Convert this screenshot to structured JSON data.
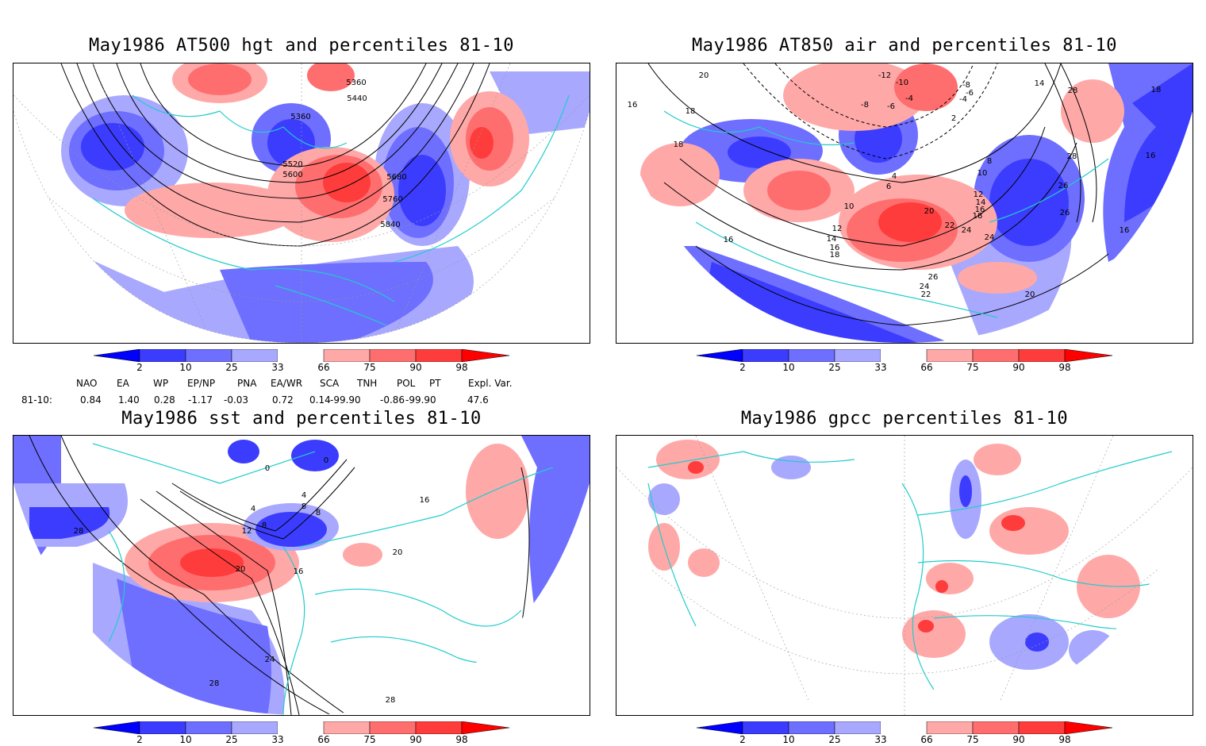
{
  "panels": {
    "tl": {
      "title": "May1986 AT500 hgt and percentiles 81-10",
      "contours": [
        "5360",
        "5440",
        "5360",
        "5520",
        "5600",
        "5680",
        "5760",
        "5840"
      ]
    },
    "tr": {
      "title": "May1986 AT850 air and percentiles 81-10",
      "contours": [
        "20",
        "16",
        "18",
        "18",
        "-12",
        "-10",
        "-8",
        "-6",
        "-4",
        "-8",
        "-6",
        "-4",
        "2",
        "14",
        "28",
        "28",
        "18",
        "16",
        "4",
        "6",
        "8",
        "10",
        "10",
        "12",
        "14",
        "16",
        "18",
        "12",
        "14",
        "16",
        "18",
        "20",
        "22",
        "24",
        "26",
        "26",
        "24",
        "16",
        "16",
        "26",
        "24",
        "22",
        "20"
      ]
    },
    "bl": {
      "title": "May1986 sst and percentiles 81-10",
      "contours": [
        "0",
        "0",
        "4",
        "4",
        "8",
        "8",
        "12",
        "8",
        "16",
        "20",
        "20",
        "28",
        "16",
        "24",
        "28",
        "28"
      ]
    },
    "br": {
      "title": "May1986 gpcc percentiles 81-10"
    }
  },
  "colorbar": {
    "labels": [
      "2",
      "10",
      "25",
      "33",
      "66",
      "75",
      "90",
      "98"
    ],
    "colors": [
      "#0000ff",
      "#3c3cff",
      "#6e6eff",
      "#a8a8ff",
      "#ffffff",
      "#ffa8a8",
      "#ff6e6e",
      "#ff3c3c",
      "#ff0000"
    ]
  },
  "indices": {
    "header": [
      "NAO",
      "EA",
      "WP",
      "EP/NP",
      "PNA",
      "EA/WR",
      "SCA",
      "TNH",
      "POL",
      "PT",
      "Expl. Var."
    ],
    "row_label": "81-10:",
    "values": [
      "0.84",
      "1.40",
      "0.28",
      "-1.17",
      "-0.03",
      "0.72",
      "0.14",
      "-99.90",
      "-0.86",
      "-99.90",
      "47.6"
    ]
  }
}
